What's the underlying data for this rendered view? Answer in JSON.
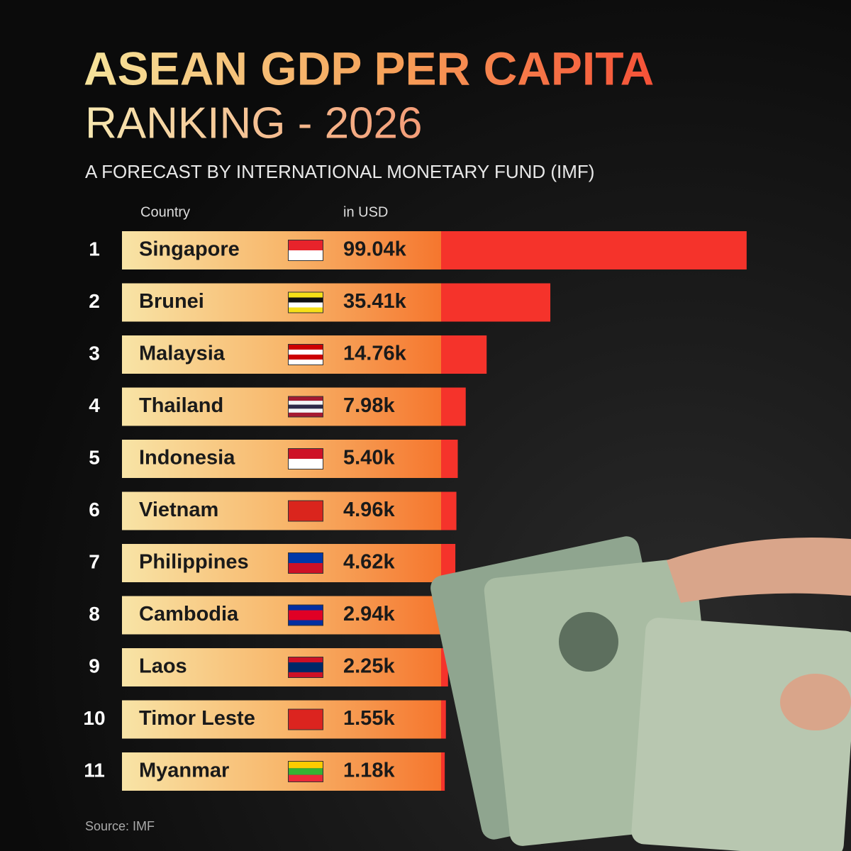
{
  "chart_data": {
    "type": "bar",
    "title": "ASEAN GDP PER CAPITA",
    "subtitle": "RANKING - 2026",
    "note": "A FORECAST BY INTERNATIONAL MONETARY FUND (IMF)",
    "category_header": "Country",
    "value_header": "in USD",
    "ranks": [
      1,
      2,
      3,
      4,
      5,
      6,
      7,
      8,
      9,
      10,
      11
    ],
    "categories": [
      "Singapore",
      "Brunei",
      "Malaysia",
      "Thailand",
      "Indonesia",
      "Vietnam",
      "Philippines",
      "Cambodia",
      "Laos",
      "Timor Leste",
      "Myanmar"
    ],
    "values": [
      99.04,
      35.41,
      14.76,
      7.98,
      5.4,
      4.96,
      4.62,
      2.94,
      2.25,
      1.55,
      1.18
    ],
    "value_labels": [
      "99.04k",
      "35.41k",
      "14.76k",
      "7.98k",
      "5.40k",
      "4.96k",
      "4.62k",
      "2.94k",
      "2.25k",
      "1.55k",
      "1.18k"
    ],
    "color": "#f5332b",
    "source": "Source: IMF"
  }
}
